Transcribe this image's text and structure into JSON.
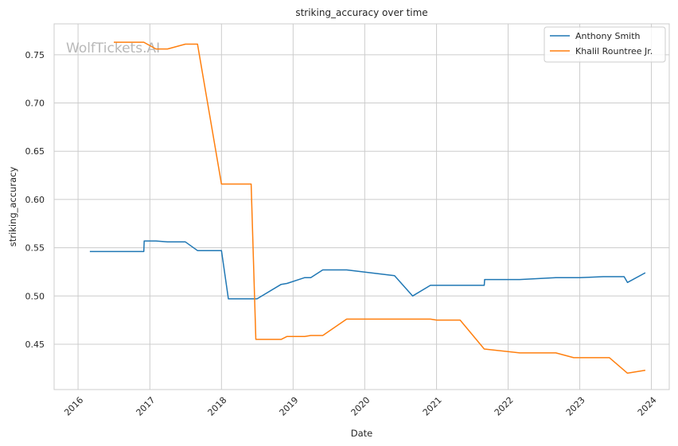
{
  "chart_data": {
    "type": "line",
    "title": "striking_accuracy over time",
    "xlabel": "Date",
    "ylabel": "striking_accuracy",
    "watermark": "WolfTickets.AI",
    "xlim": [
      "2015-09-01",
      "2024-04-01"
    ],
    "ylim": [
      0.403,
      0.782
    ],
    "x_ticks": [
      "2016-01-01",
      "2017-01-01",
      "2018-01-01",
      "2019-01-01",
      "2020-01-01",
      "2021-01-01",
      "2022-01-01",
      "2023-01-01",
      "2024-01-01"
    ],
    "x_tick_labels": [
      "2016",
      "2017",
      "2018",
      "2019",
      "2020",
      "2021",
      "2022",
      "2023",
      "2024"
    ],
    "y_ticks": [
      0.45,
      0.5,
      0.55,
      0.6,
      0.65,
      0.7,
      0.75
    ],
    "y_tick_labels": [
      "0.45",
      "0.50",
      "0.55",
      "0.60",
      "0.65",
      "0.70",
      "0.75"
    ],
    "grid": true,
    "legend_position": "top-right",
    "series": [
      {
        "name": "Anthony Smith",
        "color": "#1f77b4",
        "x": [
          "2016-03-01",
          "2016-12-01",
          "2016-12-03",
          "2017-02-01",
          "2017-04-01",
          "2017-07-01",
          "2017-09-01",
          "2018-01-01",
          "2018-02-05",
          "2018-07-01",
          "2018-11-01",
          "2018-12-01",
          "2019-03-01",
          "2019-04-01",
          "2019-06-01",
          "2019-10-01",
          "2020-06-01",
          "2020-09-01",
          "2020-12-01",
          "2021-06-01",
          "2021-09-01",
          "2021-09-03",
          "2022-03-01",
          "2022-09-01",
          "2023-01-01",
          "2023-05-01",
          "2023-08-15",
          "2023-09-01",
          "2023-12-01"
        ],
        "y": [
          0.546,
          0.546,
          0.557,
          0.557,
          0.556,
          0.556,
          0.547,
          0.547,
          0.497,
          0.497,
          0.512,
          0.513,
          0.519,
          0.519,
          0.527,
          0.527,
          0.521,
          0.5,
          0.511,
          0.511,
          0.511,
          0.517,
          0.517,
          0.519,
          0.519,
          0.52,
          0.52,
          0.514,
          0.524
        ]
      },
      {
        "name": "Khalil Rountree Jr.",
        "color": "#ff7f0e",
        "x": [
          "2016-07-01",
          "2016-12-01",
          "2017-02-01",
          "2017-04-01",
          "2017-07-01",
          "2017-09-01",
          "2018-01-01",
          "2018-06-01",
          "2018-06-25",
          "2018-11-01",
          "2018-12-01",
          "2019-03-01",
          "2019-04-01",
          "2019-06-01",
          "2019-10-01",
          "2020-12-01",
          "2021-01-01",
          "2021-05-01",
          "2021-09-01",
          "2022-03-01",
          "2022-09-01",
          "2022-12-01",
          "2023-06-01",
          "2023-09-01",
          "2023-12-01"
        ],
        "y": [
          0.763,
          0.763,
          0.756,
          0.756,
          0.761,
          0.761,
          0.616,
          0.616,
          0.455,
          0.455,
          0.458,
          0.458,
          0.459,
          0.459,
          0.476,
          0.476,
          0.475,
          0.475,
          0.445,
          0.441,
          0.441,
          0.436,
          0.436,
          0.42,
          0.423
        ]
      }
    ]
  }
}
